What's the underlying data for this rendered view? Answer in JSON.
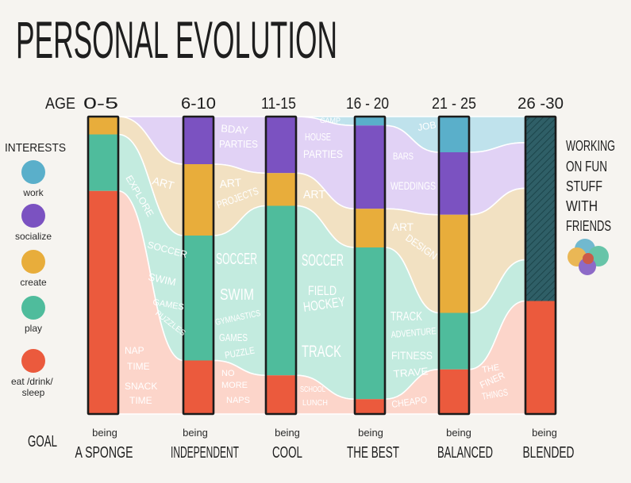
{
  "chart_data": {
    "type": "bar",
    "stacked": true,
    "orientation": "vertical",
    "title": "PERSONAL EVOLUTION",
    "xlabel": "AGE",
    "ylabel": "",
    "ylim": [
      0,
      100
    ],
    "grid": false,
    "legend": {
      "title": "INTERESTS",
      "position": "left"
    },
    "categories": [
      "0-5",
      "6-10",
      "11-15",
      "16 - 20",
      "21 - 25",
      "26 -30"
    ],
    "series": [
      {
        "name": "work",
        "color": "#5AAFCA",
        "flow_color": "#BFE2EC",
        "values": [
          0,
          0,
          0,
          3,
          12,
          0
        ]
      },
      {
        "name": "socialize",
        "color": "#7B52C1",
        "flow_color": "#E1D2F5",
        "values": [
          0,
          16,
          19,
          28,
          21,
          0
        ]
      },
      {
        "name": "create",
        "color": "#E8AD3B",
        "flow_color": "#F2E1C2",
        "values": [
          6,
          24,
          11,
          13,
          33,
          0
        ]
      },
      {
        "name": "play",
        "color": "#4FBC9C",
        "flow_color": "#C3EBDF",
        "values": [
          19,
          42,
          57,
          51,
          19,
          0
        ]
      },
      {
        "name": "eat /drink/ sleep",
        "color": "#EB5A3D",
        "flow_color": "#FCD5CA",
        "values": [
          75,
          18,
          13,
          5,
          15,
          38
        ]
      }
    ],
    "blended": {
      "category": "26 -30",
      "value": 62,
      "color": "#2F5F67",
      "label_lines": [
        "WORKING",
        "ON FUN",
        "STUFF",
        "WITH",
        "FRIENDS"
      ]
    },
    "goal_label": "GOAL",
    "goals": [
      {
        "prefix": "being",
        "text": "A SPONGE"
      },
      {
        "prefix": "being",
        "text": "INDEPENDENT"
      },
      {
        "prefix": "being",
        "text": "COOL"
      },
      {
        "prefix": "being",
        "text": "THE BEST"
      },
      {
        "prefix": "being",
        "text": "BALANCED"
      },
      {
        "prefix": "being",
        "text": "BLENDED"
      }
    ],
    "flow_labels": [
      [
        "ART",
        "EXPLORE",
        "SOCCER",
        "SWIM",
        "GAMES",
        "PUZZLES",
        "NAP",
        "TIME",
        "SNACK",
        "TIME"
      ],
      [
        "BDAY",
        "PARTIES",
        "ART",
        "PROJECTS",
        "SOCCER",
        "SWIM",
        "GYMNASTICS",
        "GAMES",
        "PUZZLE",
        "NO",
        "MORE",
        "NAPS"
      ],
      [
        "CAMP",
        "HOUSE",
        "PARTIES",
        "ART",
        "SOCCER",
        "FIELD",
        "HOCKEY",
        "TRACK",
        "SCHOOL",
        "LUNCH"
      ],
      [
        "JOB",
        "BARS",
        "WEDDINGS",
        "ART",
        "DESIGN",
        "TRACK",
        "ADVENTURE",
        "FITNESS",
        "TRAVE",
        "CHEAPO"
      ],
      [
        "THE",
        "FINER",
        "THINGS"
      ]
    ]
  }
}
